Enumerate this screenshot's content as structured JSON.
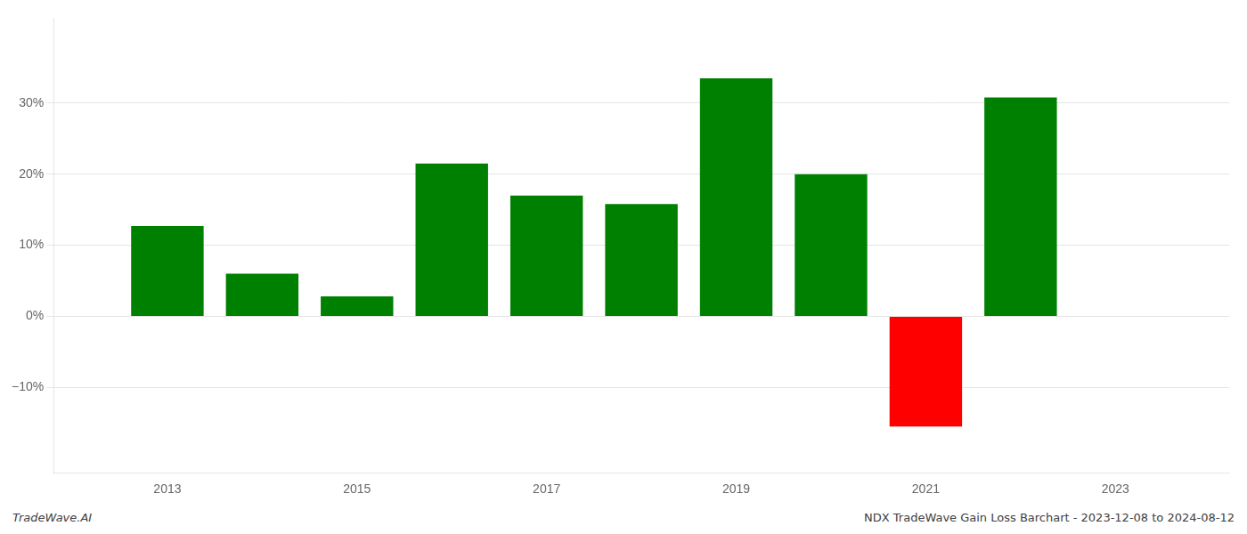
{
  "chart_data": {
    "type": "bar",
    "x": [
      2013,
      2014,
      2015,
      2016,
      2017,
      2018,
      2019,
      2020,
      2021,
      2022
    ],
    "values": [
      0.127,
      0.06,
      0.028,
      0.215,
      0.17,
      0.158,
      0.335,
      0.2,
      -0.155,
      0.308
    ],
    "colors": [
      "#008000",
      "#008000",
      "#008000",
      "#008000",
      "#008000",
      "#008000",
      "#008000",
      "#008000",
      "#ff0000",
      "#008000"
    ],
    "xlim": [
      2011.8,
      2024.2
    ],
    "xticks": [
      2013,
      2015,
      2017,
      2019,
      2021,
      2023
    ],
    "ylim": [
      -0.22,
      0.42
    ],
    "yticks": [
      {
        "value": -0.1,
        "label": "−10%"
      },
      {
        "value": 0.0,
        "label": "0%"
      },
      {
        "value": 0.1,
        "label": "10%"
      },
      {
        "value": 0.2,
        "label": "20%"
      },
      {
        "value": 0.3,
        "label": "30%"
      }
    ],
    "grid": "y",
    "annotations": [
      "TradeWave.AI",
      "NDX TradeWave Gain Loss Barchart - 2023-12-08 to 2024-08-12"
    ]
  }
}
